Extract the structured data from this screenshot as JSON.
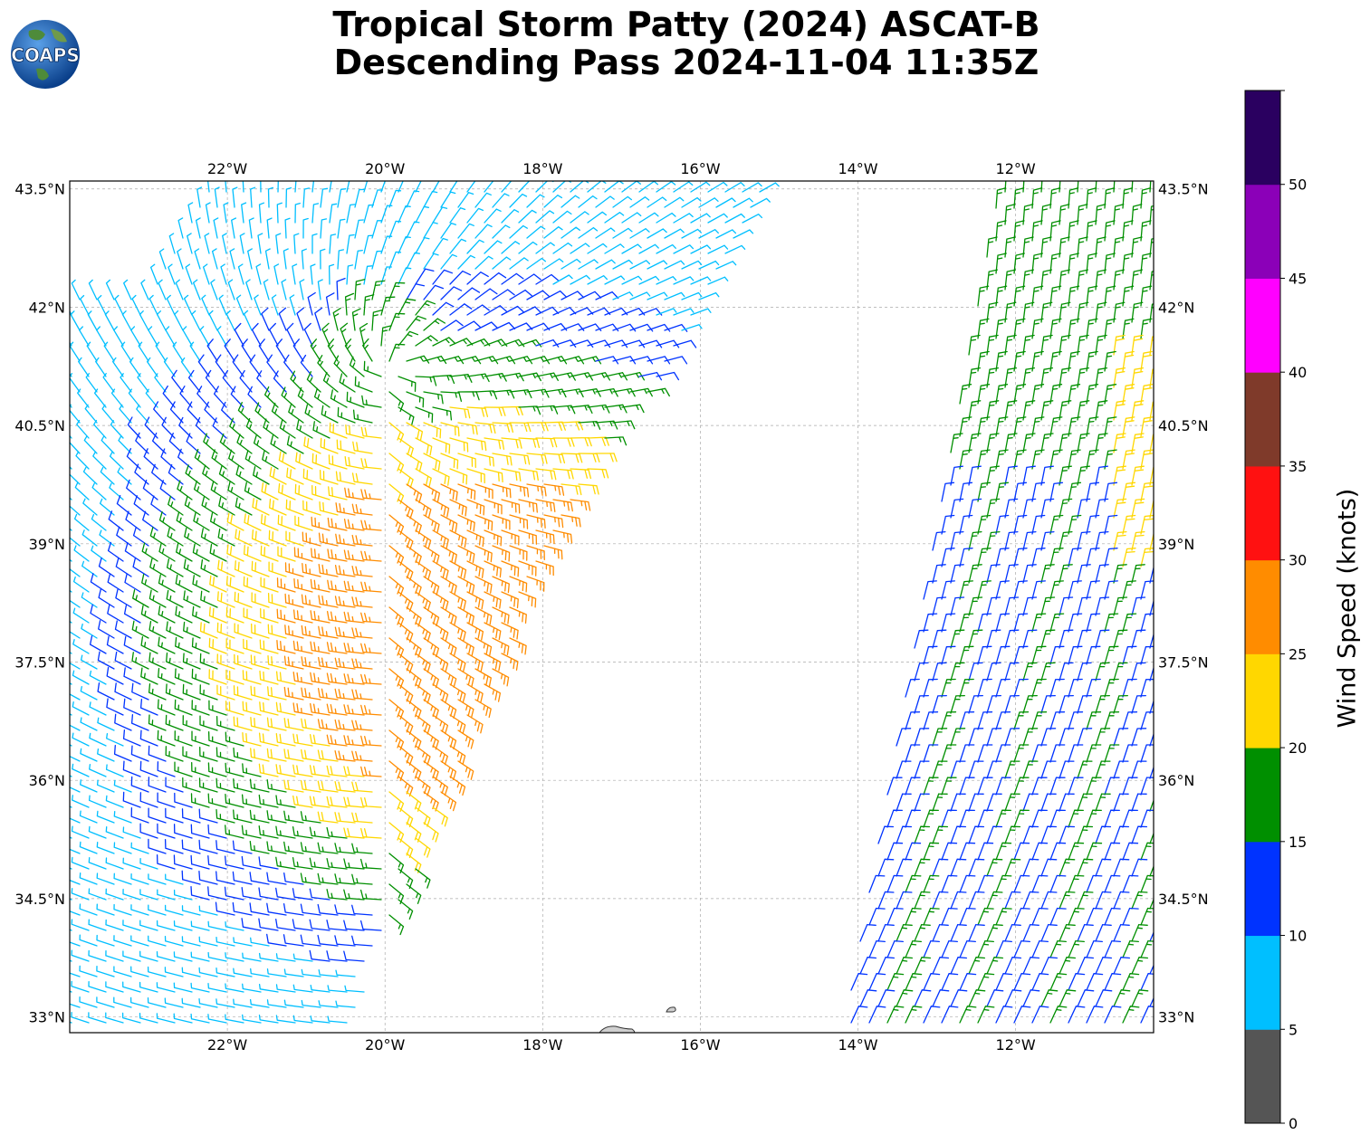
{
  "title": {
    "line1": "Tropical Storm Patty (2024) ASCAT-B",
    "line2": "Descending Pass 2024-11-04 11:35Z"
  },
  "logo": {
    "text": "COAPS"
  },
  "map": {
    "lon_range": [
      -24.0,
      -10.25
    ],
    "lat_range": [
      32.8,
      43.6
    ],
    "lon_ticks": [
      "22°W",
      "20°W",
      "18°W",
      "16°W",
      "14°W",
      "12°W"
    ],
    "lat_ticks": [
      "43.5°N",
      "42°N",
      "40.5°N",
      "39°N",
      "37.5°N",
      "36°N",
      "34.5°N",
      "33°N"
    ],
    "grid": true
  },
  "colorbar": {
    "label": "Wind Speed (knots)",
    "ticks": [
      "0",
      "5",
      "10",
      "15",
      "20",
      "25",
      "30",
      "35",
      "40",
      "45",
      "50"
    ],
    "colors": [
      "#555555",
      "#00bfff",
      "#0033ff",
      "#008f00",
      "#ffd700",
      "#ff8c00",
      "#ff1111",
      "#7f3a2a",
      "#ff00ff",
      "#8b00b8",
      "#2a0060"
    ]
  }
}
